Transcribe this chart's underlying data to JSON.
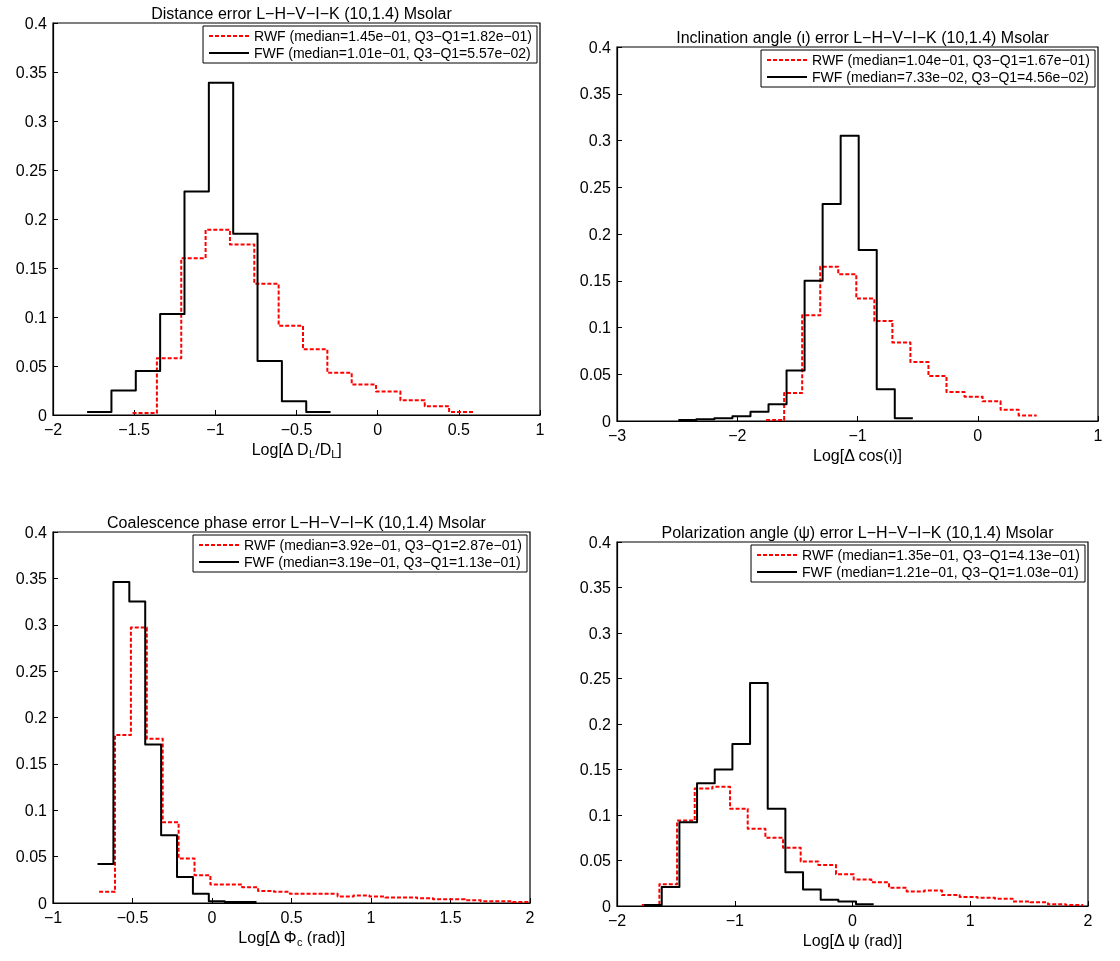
{
  "chart_data": [
    {
      "type": "step",
      "title": "Distance error L−H−V−I−K (10,1.4) Msolar",
      "xlabel": "Log[Δ D$_{L}$/D$_{L}$]",
      "xlim": [
        -2,
        1
      ],
      "xticks": [
        {
          "value": -2,
          "label": "−2"
        },
        {
          "value": -1.5,
          "label": "−1.5"
        },
        {
          "value": -1,
          "label": "−1"
        },
        {
          "value": -0.5,
          "label": "−0.5"
        },
        0,
        0.5,
        1
      ],
      "ylim": [
        0,
        0.4
      ],
      "yticks": [
        0,
        0.05,
        0.1,
        0.15,
        0.2,
        0.25,
        0.3,
        0.35,
        0.4
      ],
      "grid": false,
      "legend": "top right",
      "series": [
        {
          "name": "RWF (median=1.45e−01, Q3−Q1=1.82e−01)",
          "color": "#ff0000",
          "line_style": "dashed",
          "x": [
            -1.51,
            -1.36,
            -1.21,
            -1.06,
            -0.91,
            -0.76,
            -0.61,
            -0.46,
            -0.31,
            -0.16,
            -0.01,
            0.14,
            0.29,
            0.44,
            0.59
          ],
          "values": [
            0.002,
            0.058,
            0.16,
            0.189,
            0.174,
            0.134,
            0.091,
            0.067,
            0.043,
            0.031,
            0.024,
            0.015,
            0.009,
            0.003,
            0.003
          ]
        },
        {
          "name": "FWF (median=1.01e−01, Q3−Q1=5.57e−02)",
          "color": "#000000",
          "line_style": "solid",
          "x": [
            -1.79,
            -1.64,
            -1.49,
            -1.34,
            -1.19,
            -1.04,
            -0.89,
            -0.74,
            -0.59,
            -0.44,
            -0.29
          ],
          "values": [
            0.003,
            0.025,
            0.045,
            0.103,
            0.228,
            0.339,
            0.185,
            0.055,
            0.014,
            0.003,
            0.003
          ]
        }
      ]
    },
    {
      "type": "step",
      "title": "Inclination angle (ι) error L−H−V−I−K (10,1.4) Msolar",
      "xlabel": "Log[Δ cos(ι)]",
      "xlim": [
        -3,
        1
      ],
      "xticks": [
        {
          "value": -3,
          "label": "−3"
        },
        {
          "value": -2,
          "label": "−2"
        },
        {
          "value": -1,
          "label": "−1"
        },
        0,
        1
      ],
      "ylim": [
        0,
        0.4
      ],
      "yticks": [
        0,
        0.05,
        0.1,
        0.15,
        0.2,
        0.25,
        0.3,
        0.35,
        0.4
      ],
      "grid": false,
      "legend": "top right",
      "series": [
        {
          "name": "RWF (median=1.04e−01, Q3−Q1=1.67e−01)",
          "color": "#ff0000",
          "line_style": "dashed",
          "x": [
            -1.76,
            -1.61,
            -1.46,
            -1.31,
            -1.16,
            -1.01,
            -0.86,
            -0.71,
            -0.56,
            -0.41,
            -0.26,
            -0.11,
            0.04,
            0.19,
            0.34,
            0.49
          ],
          "values": [
            0.001,
            0.03,
            0.113,
            0.165,
            0.157,
            0.131,
            0.107,
            0.084,
            0.063,
            0.048,
            0.031,
            0.026,
            0.021,
            0.012,
            0.006,
            0.006
          ]
        },
        {
          "name": "FWF (median=7.33e−02, Q3−Q1=4.56e−02)",
          "color": "#000000",
          "line_style": "solid",
          "x": [
            -2.49,
            -2.34,
            -2.19,
            -2.04,
            -1.89,
            -1.74,
            -1.59,
            -1.44,
            -1.29,
            -1.14,
            -0.99,
            -0.84,
            -0.69,
            -0.54
          ],
          "values": [
            0.001,
            0.002,
            0.003,
            0.005,
            0.01,
            0.018,
            0.054,
            0.15,
            0.232,
            0.305,
            0.183,
            0.034,
            0.003,
            0.003
          ]
        }
      ]
    },
    {
      "type": "step",
      "title": "Coalescence phase error L−H−V−I−K (10,1.4) Msolar",
      "xlabel": "Log[Δ Φ$_{c}$ (rad)]",
      "xlim": [
        -1,
        2
      ],
      "xticks": [
        {
          "value": -1,
          "label": "−1"
        },
        {
          "value": -0.5,
          "label": "−0.5"
        },
        0,
        0.5,
        1,
        1.5,
        2
      ],
      "ylim": [
        0,
        0.4
      ],
      "yticks": [
        0,
        0.05,
        0.1,
        0.15,
        0.2,
        0.25,
        0.3,
        0.35,
        0.4
      ],
      "grid": false,
      "legend": "top right",
      "series": [
        {
          "name": "RWF (median=3.92e−01, Q3−Q1=2.87e−01)",
          "color": "#ff0000",
          "line_style": "dashed",
          "x": [
            -0.71,
            -0.61,
            -0.51,
            -0.41,
            -0.31,
            -0.21,
            -0.11,
            -0.01,
            0.09,
            0.19,
            0.29,
            0.39,
            0.49,
            0.59,
            0.69,
            0.79,
            0.89,
            0.99,
            1.09,
            1.19,
            1.29,
            1.39,
            1.49,
            1.59,
            1.69,
            1.79,
            1.89,
            1.99
          ],
          "values": [
            0.012,
            0.181,
            0.297,
            0.177,
            0.087,
            0.048,
            0.03,
            0.02,
            0.02,
            0.017,
            0.013,
            0.012,
            0.01,
            0.01,
            0.01,
            0.007,
            0.008,
            0.007,
            0.006,
            0.006,
            0.005,
            0.004,
            0.004,
            0.003,
            0.002,
            0.002,
            0.001,
            0.001
          ]
        },
        {
          "name": "FWF (median=3.19e−01, Q3−Q1=1.13e−01)",
          "color": "#000000",
          "line_style": "solid",
          "x": [
            -0.72,
            -0.62,
            -0.52,
            -0.42,
            -0.32,
            -0.22,
            -0.12,
            -0.02,
            0.08,
            0.18,
            0.28
          ],
          "values": [
            0.042,
            0.346,
            0.325,
            0.171,
            0.073,
            0.028,
            0.01,
            0.002,
            0.001,
            0.001,
            0.001
          ]
        }
      ]
    },
    {
      "type": "step",
      "title": "Polarization angle (ψ) error L−H−V−I−K (10,1.4) Msolar",
      "xlabel": "Log[Δ ψ (rad)]",
      "xlim": [
        -2,
        2
      ],
      "xticks": [
        {
          "value": -2,
          "label": "−2"
        },
        {
          "value": -1,
          "label": "−1"
        },
        0,
        1,
        2
      ],
      "ylim": [
        0,
        0.4
      ],
      "yticks": [
        0,
        0.05,
        0.1,
        0.15,
        0.2,
        0.25,
        0.3,
        0.35,
        0.4
      ],
      "grid": false,
      "legend": "top right",
      "series": [
        {
          "name": "RWF (median=1.35e−01, Q3−Q1=4.13e−01)",
          "color": "#ff0000",
          "line_style": "dashed",
          "x": [
            -1.79,
            -1.64,
            -1.49,
            -1.34,
            -1.19,
            -1.04,
            -0.89,
            -0.74,
            -0.59,
            -0.44,
            -0.29,
            -0.14,
            0.01,
            0.16,
            0.31,
            0.46,
            0.61,
            0.76,
            0.91,
            1.06,
            1.21,
            1.36,
            1.51,
            1.66,
            1.81,
            1.96
          ],
          "values": [
            0.001,
            0.024,
            0.094,
            0.129,
            0.131,
            0.107,
            0.085,
            0.075,
            0.064,
            0.049,
            0.045,
            0.035,
            0.029,
            0.026,
            0.02,
            0.016,
            0.017,
            0.012,
            0.01,
            0.009,
            0.008,
            0.005,
            0.004,
            0.002,
            0.001,
            0.001
          ]
        },
        {
          "name": "FWF (median=1.21e−01, Q3−Q1=1.03e−01)",
          "color": "#000000",
          "line_style": "solid",
          "x": [
            -1.77,
            -1.62,
            -1.47,
            -1.32,
            -1.17,
            -1.02,
            -0.87,
            -0.72,
            -0.57,
            -0.42,
            -0.27,
            -0.12,
            0.03,
            0.18
          ],
          "values": [
            0.001,
            0.021,
            0.092,
            0.135,
            0.15,
            0.178,
            0.245,
            0.107,
            0.037,
            0.018,
            0.007,
            0.005,
            0.002,
            0.002
          ]
        }
      ]
    }
  ]
}
